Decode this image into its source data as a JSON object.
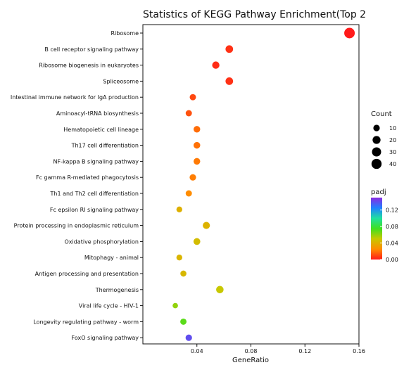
{
  "chart_data": {
    "type": "scatter",
    "title": "Statistics of KEGG Pathway Enrichment(Top 2",
    "xlabel": "GeneRatio",
    "ylabel": "",
    "xlim": [
      0.0,
      0.16
    ],
    "xticks": [
      0.04,
      0.08,
      0.12,
      0.16
    ],
    "xtick_labels": [
      "0.04",
      "0.08",
      "0.12",
      "0.16"
    ],
    "grid": false,
    "legend_placement": "right",
    "size_legend": {
      "title": "Count",
      "values": [
        10,
        20,
        30,
        40
      ],
      "labels": [
        "10",
        "20",
        "30",
        "40"
      ]
    },
    "color_legend": {
      "title": "padj",
      "min": 0.0,
      "max": 0.15,
      "ticks": [
        0.0,
        0.04,
        0.08,
        0.12
      ],
      "tick_labels": [
        "0.00",
        "0.04",
        "0.08",
        "0.12"
      ],
      "colors": [
        "#ff1a1a",
        "#ff8c00",
        "#c8c800",
        "#40e020",
        "#20e0a0",
        "#2080ff",
        "#8a2be2"
      ]
    },
    "points": [
      {
        "pathway": "Ribosome",
        "gene_ratio": 0.153,
        "count": 45,
        "padj": 0.0
      },
      {
        "pathway": "B cell receptor signaling pathway",
        "gene_ratio": 0.064,
        "count": 17,
        "padj": 0.005
      },
      {
        "pathway": "Ribosome biogenesis in eukaryotes",
        "gene_ratio": 0.054,
        "count": 15,
        "padj": 0.004
      },
      {
        "pathway": "Spliceosome",
        "gene_ratio": 0.064,
        "count": 17,
        "padj": 0.005
      },
      {
        "pathway": "Intestinal immune network for IgA production",
        "gene_ratio": 0.037,
        "count": 9,
        "padj": 0.01
      },
      {
        "pathway": "Aminoacyl-tRNA biosynthesis",
        "gene_ratio": 0.034,
        "count": 9,
        "padj": 0.012
      },
      {
        "pathway": "Hematopoietic cell lineage",
        "gene_ratio": 0.04,
        "count": 11,
        "padj": 0.018
      },
      {
        "pathway": "Th17 cell differentiation",
        "gene_ratio": 0.04,
        "count": 11,
        "padj": 0.019
      },
      {
        "pathway": "NF-kappa B signaling pathway",
        "gene_ratio": 0.04,
        "count": 11,
        "padj": 0.021
      },
      {
        "pathway": "Fc gamma R-mediated phagocytosis",
        "gene_ratio": 0.037,
        "count": 10,
        "padj": 0.022
      },
      {
        "pathway": "Th1 and Th2 cell differentiation",
        "gene_ratio": 0.034,
        "count": 9,
        "padj": 0.025
      },
      {
        "pathway": "Fc epsilon RI signaling pathway",
        "gene_ratio": 0.027,
        "count": 7,
        "padj": 0.04
      },
      {
        "pathway": "Protein processing in endoplasmic reticulum",
        "gene_ratio": 0.047,
        "count": 14,
        "padj": 0.041
      },
      {
        "pathway": "Oxidative phosphorylation",
        "gene_ratio": 0.04,
        "count": 12,
        "padj": 0.045
      },
      {
        "pathway": "Mitophagy - animal",
        "gene_ratio": 0.027,
        "count": 7,
        "padj": 0.042
      },
      {
        "pathway": "Antigen processing and presentation",
        "gene_ratio": 0.03,
        "count": 8,
        "padj": 0.043
      },
      {
        "pathway": "Thermogenesis",
        "gene_ratio": 0.057,
        "count": 16,
        "padj": 0.05
      },
      {
        "pathway": "Viral life cycle - HIV-1",
        "gene_ratio": 0.024,
        "count": 5,
        "padj": 0.06
      },
      {
        "pathway": "Longevity regulating pathway - worm",
        "gene_ratio": 0.03,
        "count": 9,
        "padj": 0.07
      },
      {
        "pathway": "FoxO signaling pathway",
        "gene_ratio": 0.034,
        "count": 10,
        "padj": 0.14
      }
    ]
  }
}
